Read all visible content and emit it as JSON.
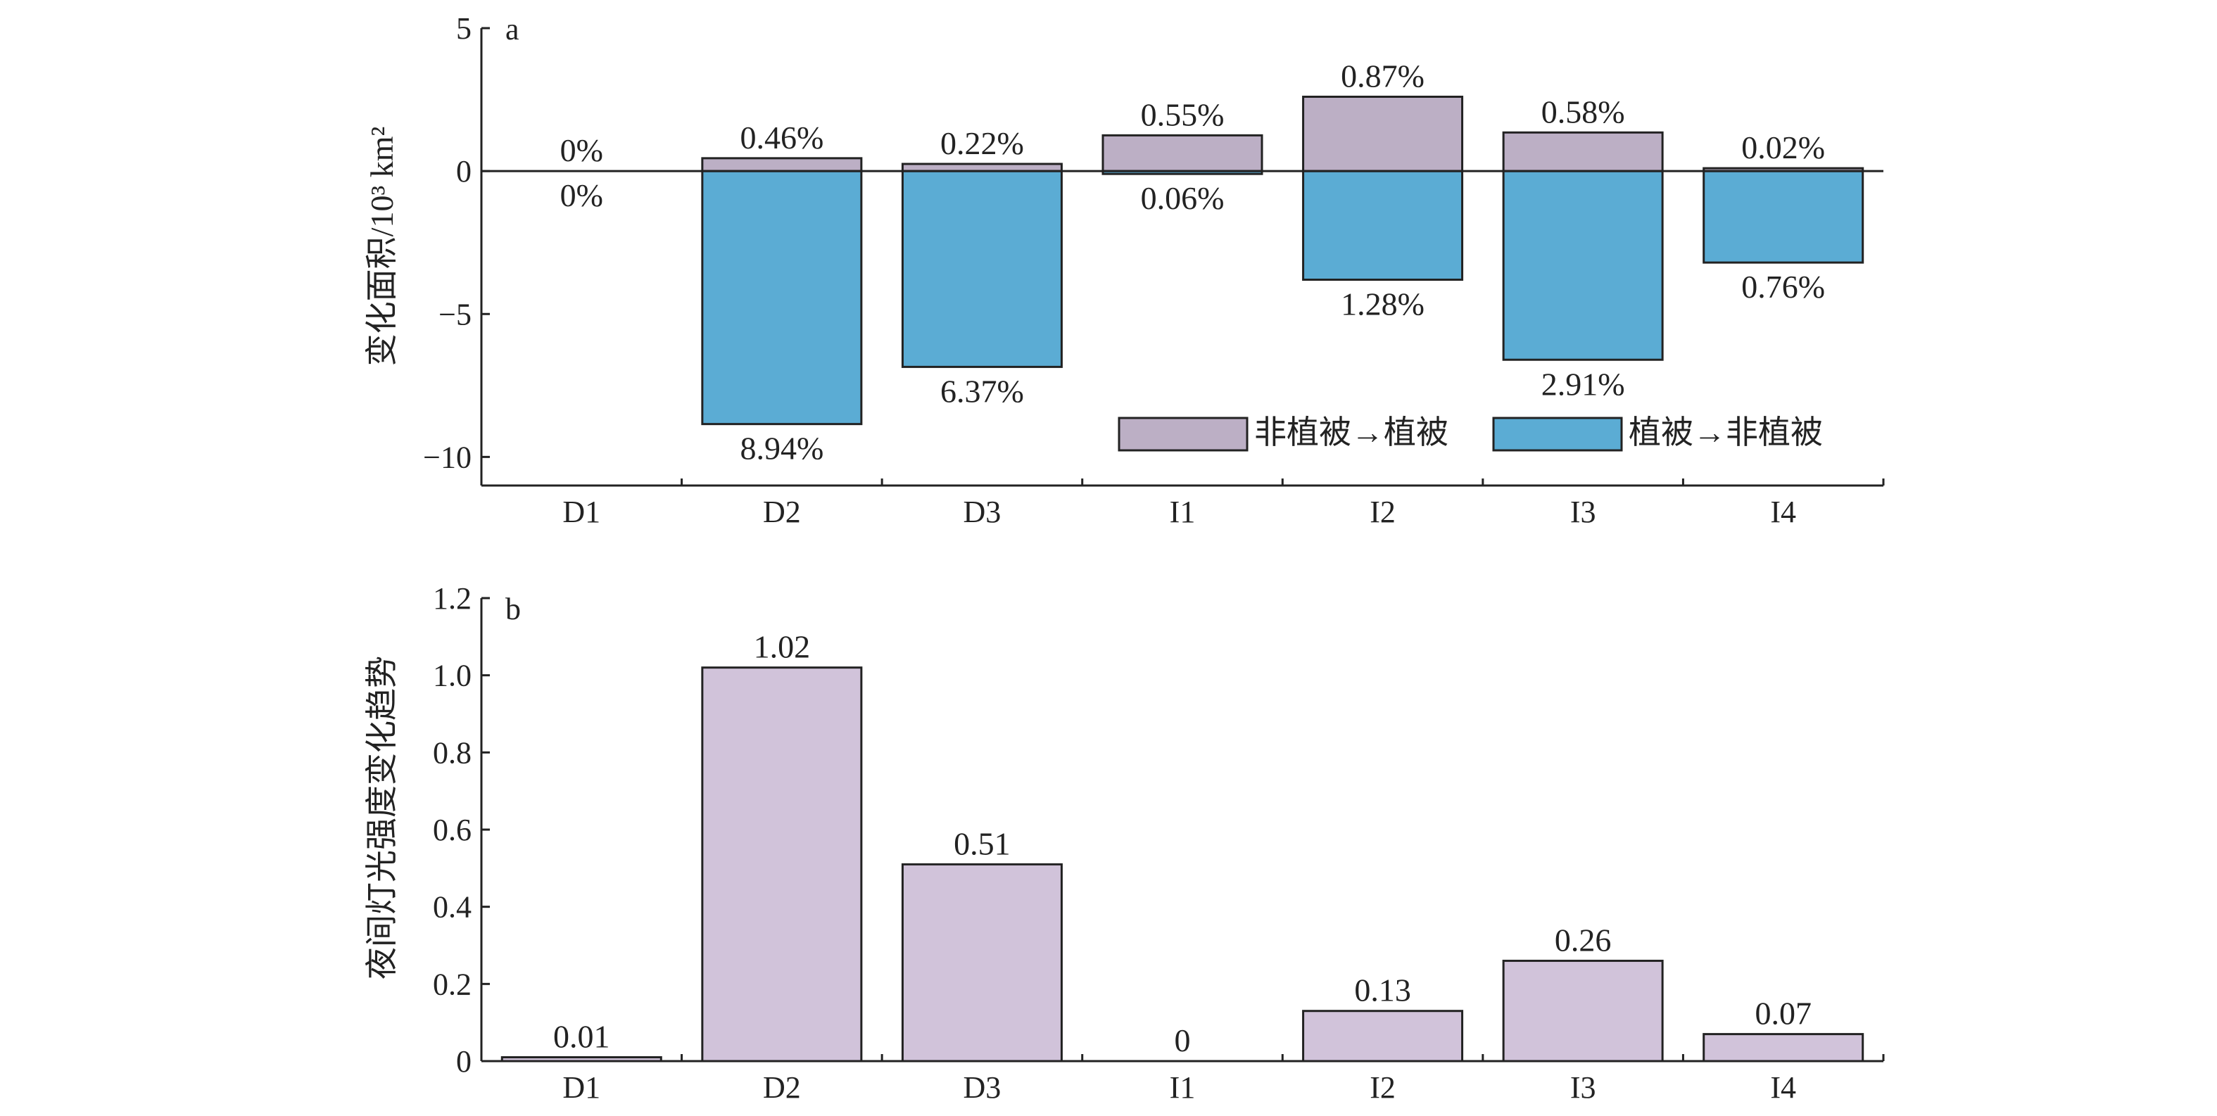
{
  "chart_data": [
    {
      "type": "bar",
      "panel_label": "a",
      "ylabel": "变化面积/10³ km²",
      "categories": [
        "D1",
        "D2",
        "D3",
        "I1",
        "I2",
        "I3",
        "I4"
      ],
      "ylim": [
        -11,
        5
      ],
      "yticks": [
        5,
        0,
        -5,
        -10
      ],
      "ytick_labels": [
        "5",
        "0",
        "−5",
        "−10"
      ],
      "series": [
        {
          "name": "非植被→植被",
          "color": "#bcafc5",
          "values": [
            0,
            0.45,
            0.25,
            1.25,
            2.6,
            1.35,
            0.1
          ],
          "labels": [
            "0%",
            "0.46%",
            "0.22%",
            "0.55%",
            "0.87%",
            "0.58%",
            "0.02%"
          ]
        },
        {
          "name": "植被→非植被",
          "color": "#5bacd4",
          "values": [
            0,
            -8.85,
            -6.85,
            -0.1,
            -3.8,
            -6.6,
            -3.2
          ],
          "labels": [
            "0%",
            "8.94%",
            "6.37%",
            "0.06%",
            "1.28%",
            "2.91%",
            "0.76%"
          ]
        }
      ],
      "legend": {
        "placement": "lower-right"
      }
    },
    {
      "type": "bar",
      "panel_label": "b",
      "ylabel": "夜间灯光强度变化趋势",
      "categories": [
        "D1",
        "D2",
        "D3",
        "I1",
        "I2",
        "I3",
        "I4"
      ],
      "ylim": [
        0,
        1.2
      ],
      "yticks": [
        0,
        0.2,
        0.4,
        0.6,
        0.8,
        1.0,
        1.2
      ],
      "ytick_labels": [
        "0",
        "0.2",
        "0.4",
        "0.6",
        "0.8",
        "1.0",
        "1.2"
      ],
      "series": [
        {
          "color": "#d1c3da",
          "values": [
            0.01,
            1.02,
            0.51,
            0,
            0.13,
            0.26,
            0.07
          ],
          "labels": [
            "0.01",
            "1.02",
            "0.51",
            "0",
            "0.13",
            "0.26",
            "0.07"
          ]
        }
      ]
    }
  ]
}
